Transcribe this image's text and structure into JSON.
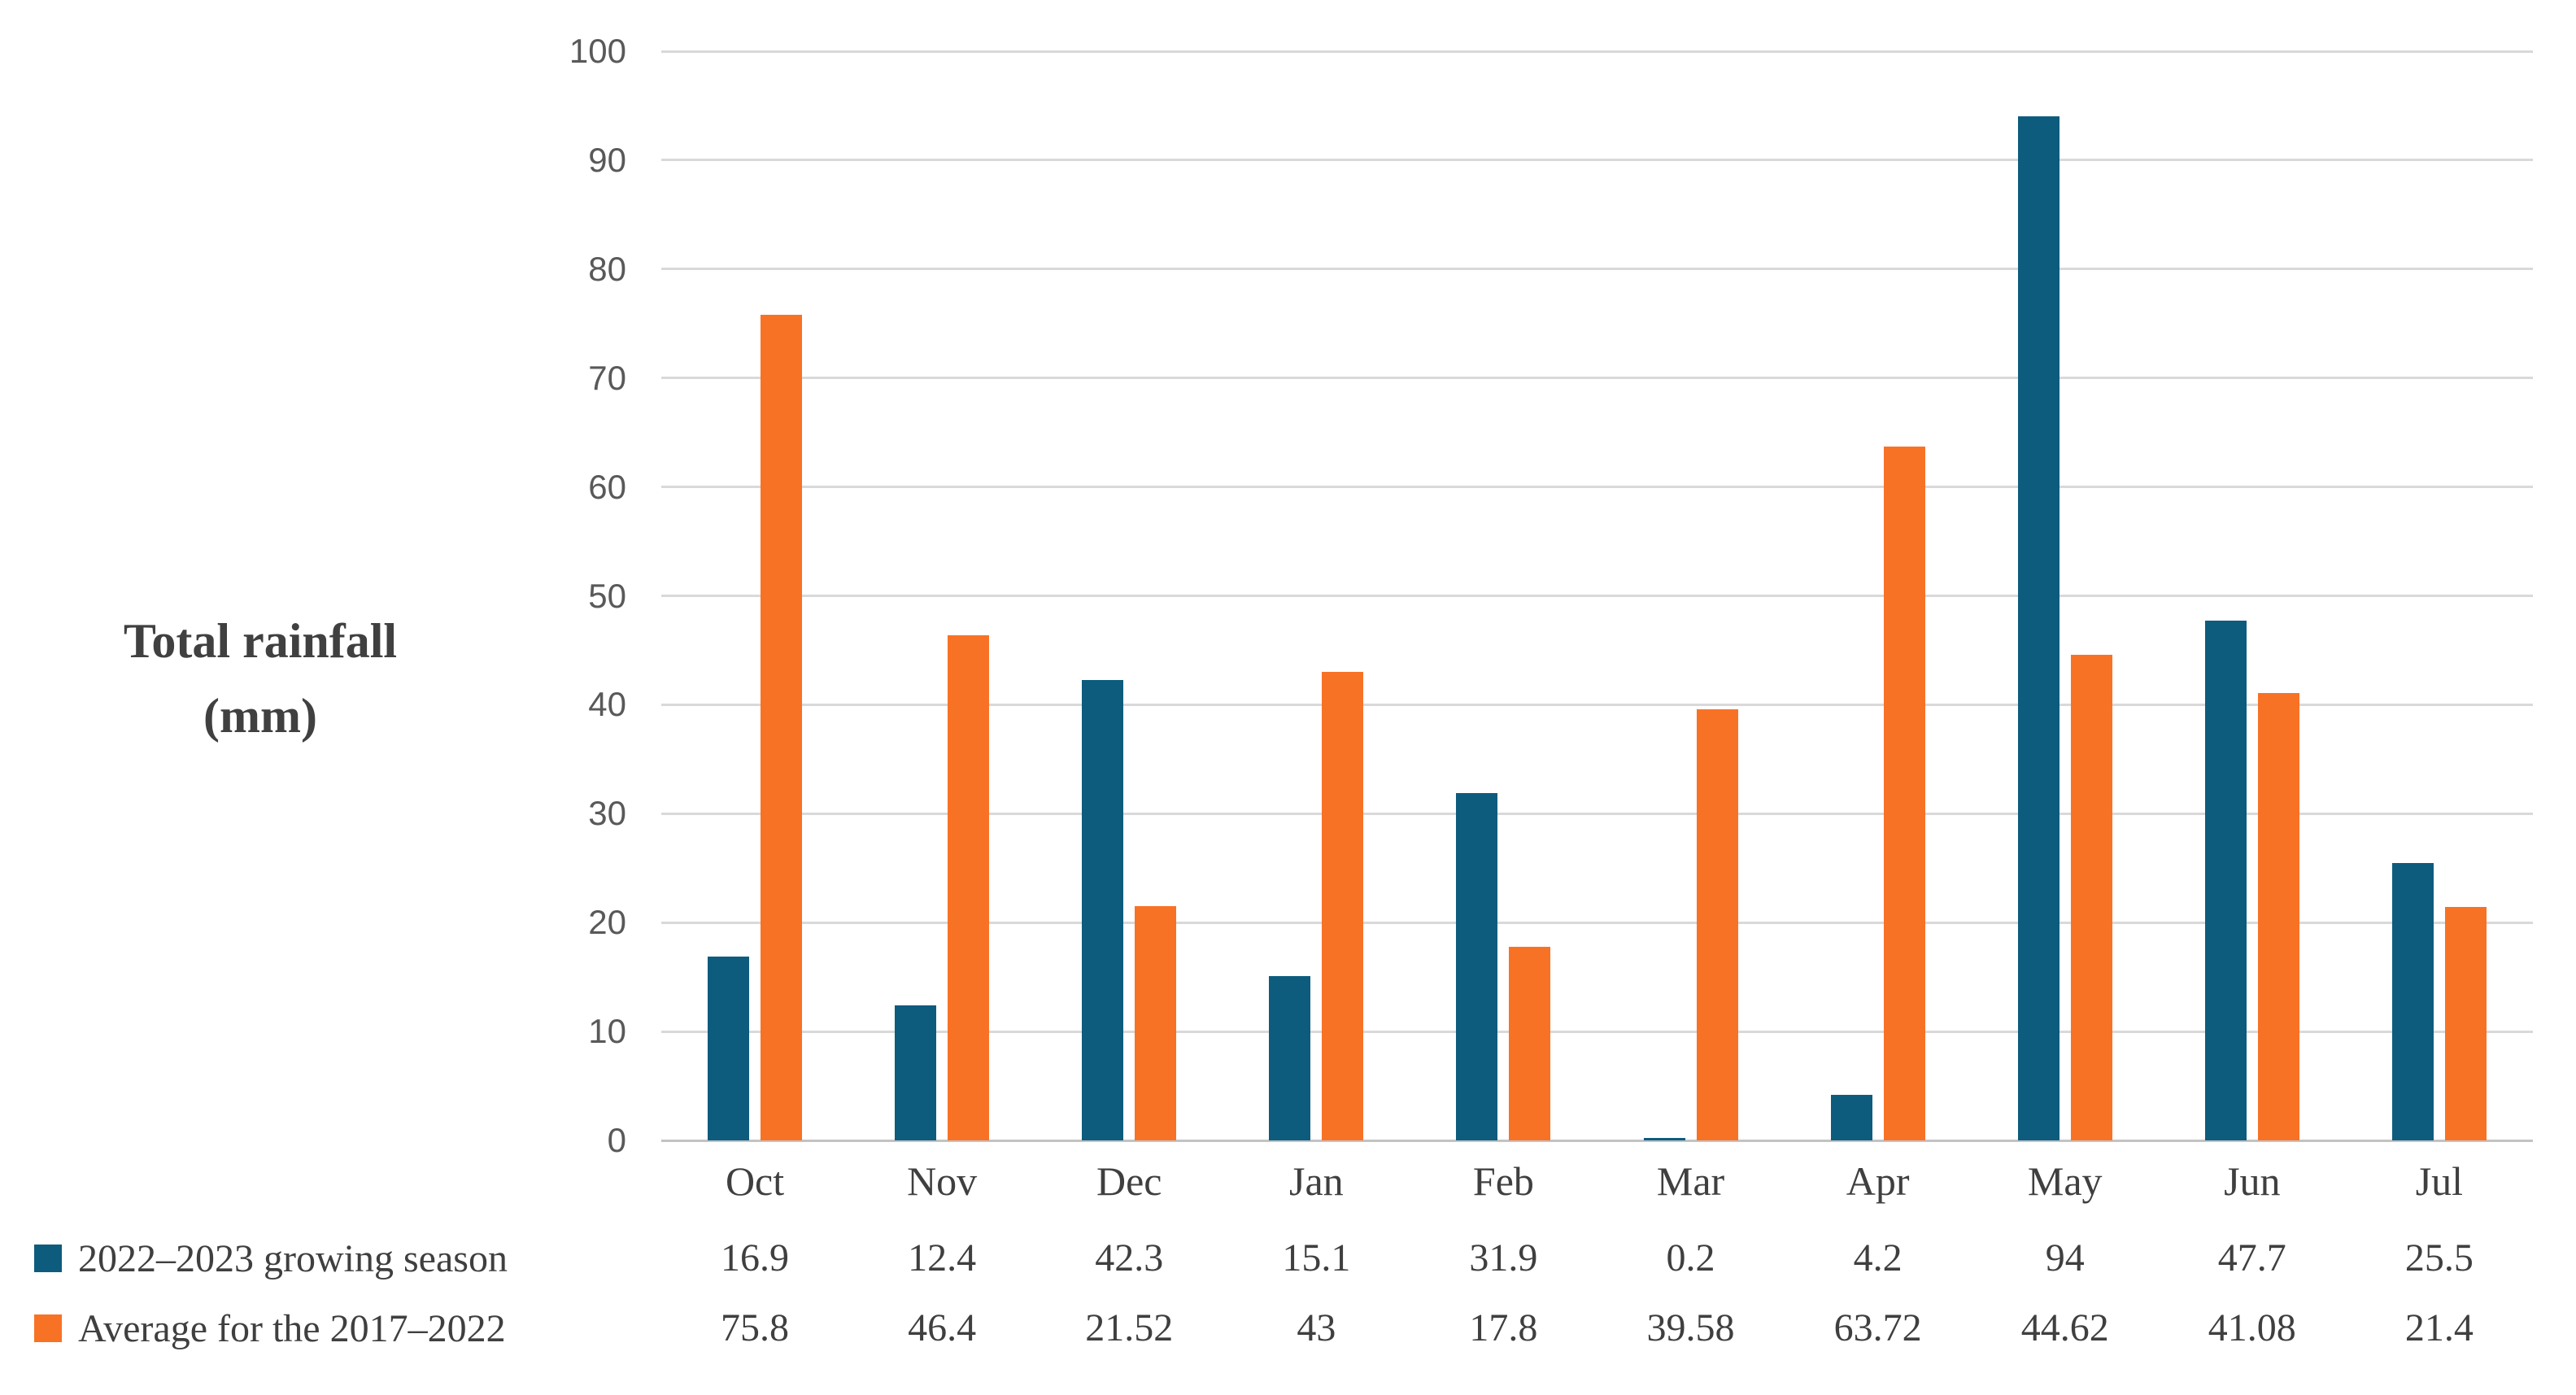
{
  "chart_data": {
    "type": "bar",
    "categories": [
      "Oct",
      "Nov",
      "Dec",
      "Jan",
      "Feb",
      "Mar",
      "Apr",
      "May",
      "Jun",
      "Jul"
    ],
    "series": [
      {
        "name": "2022–2023 growing season",
        "color": "#0d5c7e",
        "values": [
          16.9,
          12.4,
          42.3,
          15.1,
          31.9,
          0.2,
          4.2,
          94,
          47.7,
          25.5
        ]
      },
      {
        "name": "Average for the 2017–2022",
        "color": "#f87226",
        "values": [
          75.8,
          46.4,
          21.52,
          43,
          17.8,
          39.58,
          63.72,
          44.62,
          41.08,
          21.4
        ]
      }
    ],
    "title": "",
    "xlabel": "",
    "ylabel_line1": "Total rainfall",
    "ylabel_line2": "(mm)",
    "ylim": [
      0,
      100
    ],
    "yticks": [
      100,
      90,
      80,
      70,
      60,
      50,
      40,
      30,
      20,
      10,
      0
    ],
    "grid": true,
    "legend_position": "left-of-data-table",
    "colors": {
      "gridline": "#d9d9d9",
      "axis_line": "#c3c3c3",
      "tick_text": "#595959",
      "label_text": "#3f3f3f",
      "axis_title_text": "#404040"
    }
  }
}
